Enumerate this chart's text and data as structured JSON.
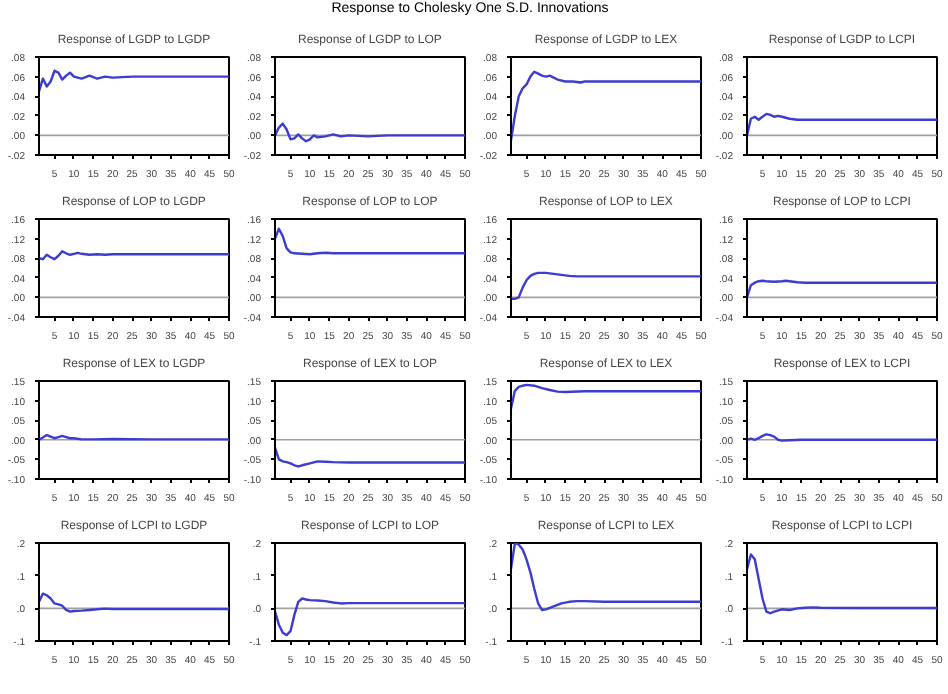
{
  "chart_data": [
    {
      "type": "line",
      "title": "Response of LGDP to LGDP",
      "annotations": [
        "Response to Cholesky One S.D. Innovations"
      ],
      "x": [
        1,
        2,
        3,
        4,
        5,
        6,
        7,
        8,
        9,
        10,
        12,
        14,
        16,
        18,
        20,
        25,
        30,
        40,
        50
      ],
      "series": [
        {
          "color": "#3c3cd2",
          "values": [
            0.045,
            0.058,
            0.05,
            0.055,
            0.066,
            0.064,
            0.057,
            0.061,
            0.064,
            0.06,
            0.058,
            0.061,
            0.058,
            0.06,
            0.059,
            0.06,
            0.06,
            0.06,
            0.06
          ]
        }
      ],
      "xlim": [
        1,
        50
      ],
      "xticks": [
        5,
        10,
        15,
        20,
        25,
        30,
        35,
        40,
        45,
        50
      ],
      "ylim": [
        -0.02,
        0.08
      ],
      "yticks": [
        {
          "value": -0.02,
          "label": "-.02"
        },
        {
          "value": 0,
          "label": ".00"
        },
        {
          "value": 0.02,
          "label": ".02"
        },
        {
          "value": 0.04,
          "label": ".04"
        },
        {
          "value": 0.06,
          "label": ".06"
        },
        {
          "value": 0.08,
          "label": ".08"
        }
      ],
      "ref_lines": [
        {
          "axis": "y",
          "value": 0,
          "color": "#a0a0a0"
        }
      ]
    },
    {
      "type": "line",
      "title": "Response of LGDP to LOP",
      "x": [
        1,
        2,
        3,
        4,
        5,
        6,
        7,
        8,
        9,
        10,
        11,
        12,
        14,
        16,
        18,
        20,
        25,
        30,
        50
      ],
      "series": [
        {
          "color": "#3c3cd2",
          "values": [
            0,
            0.008,
            0.012,
            0.006,
            -0.004,
            -0.003,
            0.001,
            -0.003,
            -0.006,
            -0.004,
            0,
            -0.002,
            -0.001,
            0.001,
            -0.001,
            0,
            -0.001,
            0,
            0
          ]
        }
      ],
      "xlim": [
        1,
        50
      ],
      "xticks": [
        5,
        10,
        15,
        20,
        25,
        30,
        35,
        40,
        45,
        50
      ],
      "ylim": [
        -0.02,
        0.08
      ],
      "yticks": [
        {
          "value": -0.02,
          "label": "-.02"
        },
        {
          "value": 0,
          "label": ".00"
        },
        {
          "value": 0.02,
          "label": ".02"
        },
        {
          "value": 0.04,
          "label": ".04"
        },
        {
          "value": 0.06,
          "label": ".06"
        },
        {
          "value": 0.08,
          "label": ".08"
        }
      ],
      "ref_lines": [
        {
          "axis": "y",
          "value": 0,
          "color": "#a0a0a0"
        }
      ]
    },
    {
      "type": "line",
      "title": "Response of LGDP to LEX",
      "x": [
        1,
        2,
        3,
        4,
        5,
        6,
        7,
        8,
        9,
        10,
        11,
        12,
        13,
        15,
        17,
        19,
        20,
        25,
        30,
        50
      ],
      "series": [
        {
          "color": "#3c3cd2",
          "values": [
            -0.005,
            0.02,
            0.04,
            0.048,
            0.052,
            0.06,
            0.065,
            0.063,
            0.061,
            0.06,
            0.061,
            0.059,
            0.057,
            0.055,
            0.055,
            0.054,
            0.055,
            0.055,
            0.055,
            0.055
          ]
        }
      ],
      "xlim": [
        1,
        50
      ],
      "xticks": [
        5,
        10,
        15,
        20,
        25,
        30,
        35,
        40,
        45,
        50
      ],
      "ylim": [
        -0.02,
        0.08
      ],
      "yticks": [
        {
          "value": -0.02,
          "label": "-.02"
        },
        {
          "value": 0,
          "label": ".00"
        },
        {
          "value": 0.02,
          "label": ".02"
        },
        {
          "value": 0.04,
          "label": ".04"
        },
        {
          "value": 0.06,
          "label": ".06"
        },
        {
          "value": 0.08,
          "label": ".08"
        }
      ],
      "ref_lines": [
        {
          "axis": "y",
          "value": 0,
          "color": "#a0a0a0"
        }
      ]
    },
    {
      "type": "line",
      "title": "Response of LGDP to LCPI",
      "x": [
        1,
        2,
        3,
        4,
        5,
        6,
        7,
        8,
        9,
        10,
        12,
        14,
        20,
        30,
        50
      ],
      "series": [
        {
          "color": "#3c3cd2",
          "values": [
            0,
            0.017,
            0.019,
            0.016,
            0.019,
            0.022,
            0.021,
            0.019,
            0.02,
            0.019,
            0.017,
            0.016,
            0.016,
            0.016,
            0.016
          ]
        }
      ],
      "xlim": [
        1,
        50
      ],
      "xticks": [
        5,
        10,
        15,
        20,
        25,
        30,
        35,
        40,
        45,
        50
      ],
      "ylim": [
        -0.02,
        0.08
      ],
      "yticks": [
        {
          "value": -0.02,
          "label": "-.02"
        },
        {
          "value": 0,
          "label": ".00"
        },
        {
          "value": 0.02,
          "label": ".02"
        },
        {
          "value": 0.04,
          "label": ".04"
        },
        {
          "value": 0.06,
          "label": ".06"
        },
        {
          "value": 0.08,
          "label": ".08"
        }
      ],
      "ref_lines": [
        {
          "axis": "y",
          "value": 0,
          "color": "#a0a0a0"
        }
      ]
    },
    {
      "type": "line",
      "title": "Response of LOP to LGDP",
      "x": [
        1,
        2,
        3,
        4,
        5,
        6,
        7,
        8,
        9,
        10,
        11,
        12,
        14,
        16,
        18,
        20,
        30,
        50
      ],
      "series": [
        {
          "color": "#3c3cd2",
          "values": [
            0.08,
            0.078,
            0.087,
            0.082,
            0.078,
            0.085,
            0.094,
            0.09,
            0.087,
            0.089,
            0.091,
            0.089,
            0.087,
            0.088,
            0.087,
            0.088,
            0.088,
            0.088
          ]
        }
      ],
      "xlim": [
        1,
        50
      ],
      "xticks": [
        5,
        10,
        15,
        20,
        25,
        30,
        35,
        40,
        45,
        50
      ],
      "ylim": [
        -0.04,
        0.16
      ],
      "yticks": [
        {
          "value": -0.04,
          "label": "-.04"
        },
        {
          "value": 0,
          "label": ".00"
        },
        {
          "value": 0.04,
          "label": ".04"
        },
        {
          "value": 0.08,
          "label": ".08"
        },
        {
          "value": 0.12,
          "label": ".12"
        },
        {
          "value": 0.16,
          "label": ".16"
        }
      ],
      "ref_lines": [
        {
          "axis": "y",
          "value": 0,
          "color": "#a0a0a0"
        }
      ]
    },
    {
      "type": "line",
      "title": "Response of LOP to LOP",
      "x": [
        1,
        2,
        3,
        4,
        5,
        6,
        8,
        10,
        12,
        14,
        16,
        20,
        30,
        50
      ],
      "series": [
        {
          "color": "#3c3cd2",
          "values": [
            0.12,
            0.14,
            0.125,
            0.1,
            0.092,
            0.09,
            0.089,
            0.088,
            0.09,
            0.091,
            0.09,
            0.09,
            0.09,
            0.09
          ]
        }
      ],
      "xlim": [
        1,
        50
      ],
      "xticks": [
        5,
        10,
        15,
        20,
        25,
        30,
        35,
        40,
        45,
        50
      ],
      "ylim": [
        -0.04,
        0.16
      ],
      "yticks": [
        {
          "value": -0.04,
          "label": "-.04"
        },
        {
          "value": 0,
          "label": ".00"
        },
        {
          "value": 0.04,
          "label": ".04"
        },
        {
          "value": 0.08,
          "label": ".08"
        },
        {
          "value": 0.12,
          "label": ".12"
        },
        {
          "value": 0.16,
          "label": ".16"
        }
      ],
      "ref_lines": [
        {
          "axis": "y",
          "value": 0,
          "color": "#a0a0a0"
        }
      ]
    },
    {
      "type": "line",
      "title": "Response of LOP to LEX",
      "x": [
        1,
        2,
        3,
        4,
        5,
        6,
        7,
        8,
        10,
        12,
        14,
        16,
        18,
        20,
        30,
        50
      ],
      "series": [
        {
          "color": "#3c3cd2",
          "values": [
            -0.003,
            -0.003,
            0,
            0.02,
            0.035,
            0.044,
            0.048,
            0.05,
            0.05,
            0.048,
            0.046,
            0.044,
            0.043,
            0.043,
            0.043,
            0.043
          ]
        }
      ],
      "xlim": [
        1,
        50
      ],
      "xticks": [
        5,
        10,
        15,
        20,
        25,
        30,
        35,
        40,
        45,
        50
      ],
      "ylim": [
        -0.04,
        0.16
      ],
      "yticks": [
        {
          "value": -0.04,
          "label": "-.04"
        },
        {
          "value": 0,
          "label": ".00"
        },
        {
          "value": 0.04,
          "label": ".04"
        },
        {
          "value": 0.08,
          "label": ".08"
        },
        {
          "value": 0.12,
          "label": ".12"
        },
        {
          "value": 0.16,
          "label": ".16"
        }
      ],
      "ref_lines": [
        {
          "axis": "y",
          "value": 0,
          "color": "#a0a0a0"
        }
      ]
    },
    {
      "type": "line",
      "title": "Response of LOP to LCPI",
      "x": [
        1,
        2,
        3,
        4,
        5,
        6,
        8,
        10,
        11,
        12,
        14,
        16,
        20,
        30,
        50
      ],
      "series": [
        {
          "color": "#3c3cd2",
          "values": [
            0,
            0.025,
            0.03,
            0.033,
            0.034,
            0.033,
            0.032,
            0.033,
            0.034,
            0.033,
            0.031,
            0.03,
            0.03,
            0.03,
            0.03
          ]
        }
      ],
      "xlim": [
        1,
        50
      ],
      "xticks": [
        5,
        10,
        15,
        20,
        25,
        30,
        35,
        40,
        45,
        50
      ],
      "ylim": [
        -0.04,
        0.16
      ],
      "yticks": [
        {
          "value": -0.04,
          "label": "-.04"
        },
        {
          "value": 0,
          "label": ".00"
        },
        {
          "value": 0.04,
          "label": ".04"
        },
        {
          "value": 0.08,
          "label": ".08"
        },
        {
          "value": 0.12,
          "label": ".12"
        },
        {
          "value": 0.16,
          "label": ".16"
        }
      ],
      "ref_lines": [
        {
          "axis": "y",
          "value": 0,
          "color": "#a0a0a0"
        }
      ]
    },
    {
      "type": "line",
      "title": "Response of LEX to LGDP",
      "x": [
        1,
        2,
        3,
        4,
        5,
        6,
        7,
        8,
        9,
        10,
        12,
        15,
        20,
        30,
        50
      ],
      "series": [
        {
          "color": "#3c3cd2",
          "values": [
            0,
            0.006,
            0.012,
            0.008,
            0.004,
            0.007,
            0.01,
            0.007,
            0.004,
            0.004,
            0.001,
            0.001,
            0.002,
            0.001,
            0.001
          ]
        }
      ],
      "xlim": [
        1,
        50
      ],
      "xticks": [
        5,
        10,
        15,
        20,
        25,
        30,
        35,
        40,
        45,
        50
      ],
      "ylim": [
        -0.1,
        0.15
      ],
      "yticks": [
        {
          "value": -0.1,
          "label": "-.10"
        },
        {
          "value": -0.05,
          "label": "-.05"
        },
        {
          "value": 0,
          "label": ".00"
        },
        {
          "value": 0.05,
          "label": ".05"
        },
        {
          "value": 0.1,
          "label": ".10"
        },
        {
          "value": 0.15,
          "label": ".15"
        }
      ],
      "ref_lines": [
        {
          "axis": "y",
          "value": 0,
          "color": "#a0a0a0"
        }
      ]
    },
    {
      "type": "line",
      "title": "Response of LEX to LOP",
      "x": [
        1,
        2,
        3,
        4,
        5,
        6,
        7,
        8,
        10,
        12,
        14,
        16,
        20,
        30,
        50
      ],
      "series": [
        {
          "color": "#3c3cd2",
          "values": [
            -0.02,
            -0.05,
            -0.055,
            -0.057,
            -0.06,
            -0.065,
            -0.068,
            -0.065,
            -0.06,
            -0.055,
            -0.056,
            -0.057,
            -0.058,
            -0.058,
            -0.058
          ]
        }
      ],
      "xlim": [
        1,
        50
      ],
      "xticks": [
        5,
        10,
        15,
        20,
        25,
        30,
        35,
        40,
        45,
        50
      ],
      "ylim": [
        -0.1,
        0.15
      ],
      "yticks": [
        {
          "value": -0.1,
          "label": "-.10"
        },
        {
          "value": -0.05,
          "label": "-.05"
        },
        {
          "value": 0,
          "label": ".00"
        },
        {
          "value": 0.05,
          "label": ".05"
        },
        {
          "value": 0.1,
          "label": ".10"
        },
        {
          "value": 0.15,
          "label": ".15"
        }
      ],
      "ref_lines": [
        {
          "axis": "y",
          "value": 0,
          "color": "#a0a0a0"
        }
      ]
    },
    {
      "type": "line",
      "title": "Response of LEX to LEX",
      "x": [
        1,
        2,
        3,
        4,
        5,
        7,
        9,
        11,
        13,
        15,
        20,
        25,
        30,
        50
      ],
      "series": [
        {
          "color": "#3c3cd2",
          "values": [
            0.08,
            0.125,
            0.135,
            0.138,
            0.14,
            0.138,
            0.132,
            0.127,
            0.123,
            0.122,
            0.124,
            0.124,
            0.124,
            0.124
          ]
        }
      ],
      "xlim": [
        1,
        50
      ],
      "xticks": [
        5,
        10,
        15,
        20,
        25,
        30,
        35,
        40,
        45,
        50
      ],
      "ylim": [
        -0.1,
        0.15
      ],
      "yticks": [
        {
          "value": -0.1,
          "label": "-.10"
        },
        {
          "value": -0.05,
          "label": "-.05"
        },
        {
          "value": 0,
          "label": ".00"
        },
        {
          "value": 0.05,
          "label": ".05"
        },
        {
          "value": 0.1,
          "label": ".10"
        },
        {
          "value": 0.15,
          "label": ".15"
        }
      ],
      "ref_lines": [
        {
          "axis": "y",
          "value": 0,
          "color": "#a0a0a0"
        }
      ]
    },
    {
      "type": "line",
      "title": "Response of LEX to LCPI",
      "x": [
        1,
        2,
        3,
        4,
        5,
        6,
        7,
        8,
        9,
        10,
        12,
        15,
        20,
        50
      ],
      "series": [
        {
          "color": "#3c3cd2",
          "values": [
            0,
            0.003,
            0,
            0.004,
            0.01,
            0.014,
            0.012,
            0.008,
            0,
            -0.002,
            -0.001,
            0,
            0,
            0
          ]
        }
      ],
      "xlim": [
        1,
        50
      ],
      "xticks": [
        5,
        10,
        15,
        20,
        25,
        30,
        35,
        40,
        45,
        50
      ],
      "ylim": [
        -0.1,
        0.15
      ],
      "yticks": [
        {
          "value": -0.1,
          "label": "-.10"
        },
        {
          "value": -0.05,
          "label": "-.05"
        },
        {
          "value": 0,
          "label": ".00"
        },
        {
          "value": 0.05,
          "label": ".05"
        },
        {
          "value": 0.1,
          "label": ".10"
        },
        {
          "value": 0.15,
          "label": ".15"
        }
      ],
      "ref_lines": [
        {
          "axis": "y",
          "value": 0,
          "color": "#a0a0a0"
        }
      ]
    },
    {
      "type": "line",
      "title": "Response of LCPI to LGDP",
      "x": [
        1,
        2,
        3,
        4,
        5,
        6,
        7,
        8,
        9,
        10,
        12,
        14,
        16,
        18,
        20,
        30,
        50
      ],
      "series": [
        {
          "color": "#3c3cd2",
          "values": [
            0.02,
            0.045,
            0.04,
            0.03,
            0.015,
            0.012,
            0.008,
            -0.005,
            -0.01,
            -0.008,
            -0.007,
            -0.005,
            -0.003,
            -0.001,
            -0.002,
            -0.002,
            -0.002
          ]
        }
      ],
      "xlim": [
        1,
        50
      ],
      "xticks": [
        5,
        10,
        15,
        20,
        25,
        30,
        35,
        40,
        45,
        50
      ],
      "ylim": [
        -0.1,
        0.2
      ],
      "yticks": [
        {
          "value": -0.1,
          "label": "-.1"
        },
        {
          "value": 0,
          "label": ".0"
        },
        {
          "value": 0.1,
          "label": ".1"
        },
        {
          "value": 0.2,
          "label": ".2"
        }
      ],
      "ref_lines": [
        {
          "axis": "y",
          "value": 0,
          "color": "#a0a0a0"
        }
      ]
    },
    {
      "type": "line",
      "title": "Response of LCPI to LOP",
      "x": [
        1,
        2,
        3,
        4,
        5,
        6,
        7,
        8,
        9,
        10,
        12,
        14,
        16,
        18,
        20,
        30,
        50
      ],
      "series": [
        {
          "color": "#3c3cd2",
          "values": [
            -0.01,
            -0.05,
            -0.075,
            -0.082,
            -0.07,
            -0.02,
            0.02,
            0.03,
            0.027,
            0.025,
            0.024,
            0.022,
            0.018,
            0.015,
            0.016,
            0.016,
            0.016
          ]
        }
      ],
      "xlim": [
        1,
        50
      ],
      "xticks": [
        5,
        10,
        15,
        20,
        25,
        30,
        35,
        40,
        45,
        50
      ],
      "ylim": [
        -0.1,
        0.2
      ],
      "yticks": [
        {
          "value": -0.1,
          "label": "-.1"
        },
        {
          "value": 0,
          "label": ".0"
        },
        {
          "value": 0.1,
          "label": ".1"
        },
        {
          "value": 0.2,
          "label": ".2"
        }
      ],
      "ref_lines": [
        {
          "axis": "y",
          "value": 0,
          "color": "#a0a0a0"
        }
      ]
    },
    {
      "type": "line",
      "title": "Response of LCPI to LEX",
      "x": [
        1,
        2,
        3,
        4,
        5,
        6,
        7,
        8,
        9,
        10,
        12,
        14,
        16,
        18,
        20,
        25,
        30,
        50
      ],
      "series": [
        {
          "color": "#3c3cd2",
          "values": [
            0.12,
            0.2,
            0.195,
            0.18,
            0.15,
            0.11,
            0.06,
            0.015,
            -0.005,
            -0.003,
            0.006,
            0.015,
            0.02,
            0.022,
            0.022,
            0.02,
            0.02,
            0.02
          ]
        }
      ],
      "xlim": [
        1,
        50
      ],
      "xticks": [
        5,
        10,
        15,
        20,
        25,
        30,
        35,
        40,
        45,
        50
      ],
      "ylim": [
        -0.1,
        0.2
      ],
      "yticks": [
        {
          "value": -0.1,
          "label": "-.1"
        },
        {
          "value": 0,
          "label": ".0"
        },
        {
          "value": 0.1,
          "label": ".1"
        },
        {
          "value": 0.2,
          "label": ".2"
        }
      ],
      "ref_lines": [
        {
          "axis": "y",
          "value": 0,
          "color": "#a0a0a0"
        }
      ]
    },
    {
      "type": "line",
      "title": "Response of LCPI to LCPI",
      "x": [
        1,
        2,
        3,
        4,
        5,
        6,
        7,
        8,
        10,
        12,
        14,
        16,
        18,
        20,
        30,
        50
      ],
      "series": [
        {
          "color": "#3c3cd2",
          "values": [
            0.12,
            0.165,
            0.15,
            0.09,
            0.03,
            -0.01,
            -0.015,
            -0.01,
            -0.003,
            -0.005,
            0,
            0.002,
            0.003,
            0.002,
            0.001,
            0.001
          ]
        }
      ],
      "xlim": [
        1,
        50
      ],
      "xticks": [
        5,
        10,
        15,
        20,
        25,
        30,
        35,
        40,
        45,
        50
      ],
      "ylim": [
        -0.1,
        0.2
      ],
      "yticks": [
        {
          "value": -0.1,
          "label": "-.1"
        },
        {
          "value": 0,
          "label": ".0"
        },
        {
          "value": 0.1,
          "label": ".1"
        },
        {
          "value": 0.2,
          "label": ".2"
        }
      ],
      "ref_lines": [
        {
          "axis": "y",
          "value": 0,
          "color": "#a0a0a0"
        }
      ]
    }
  ]
}
